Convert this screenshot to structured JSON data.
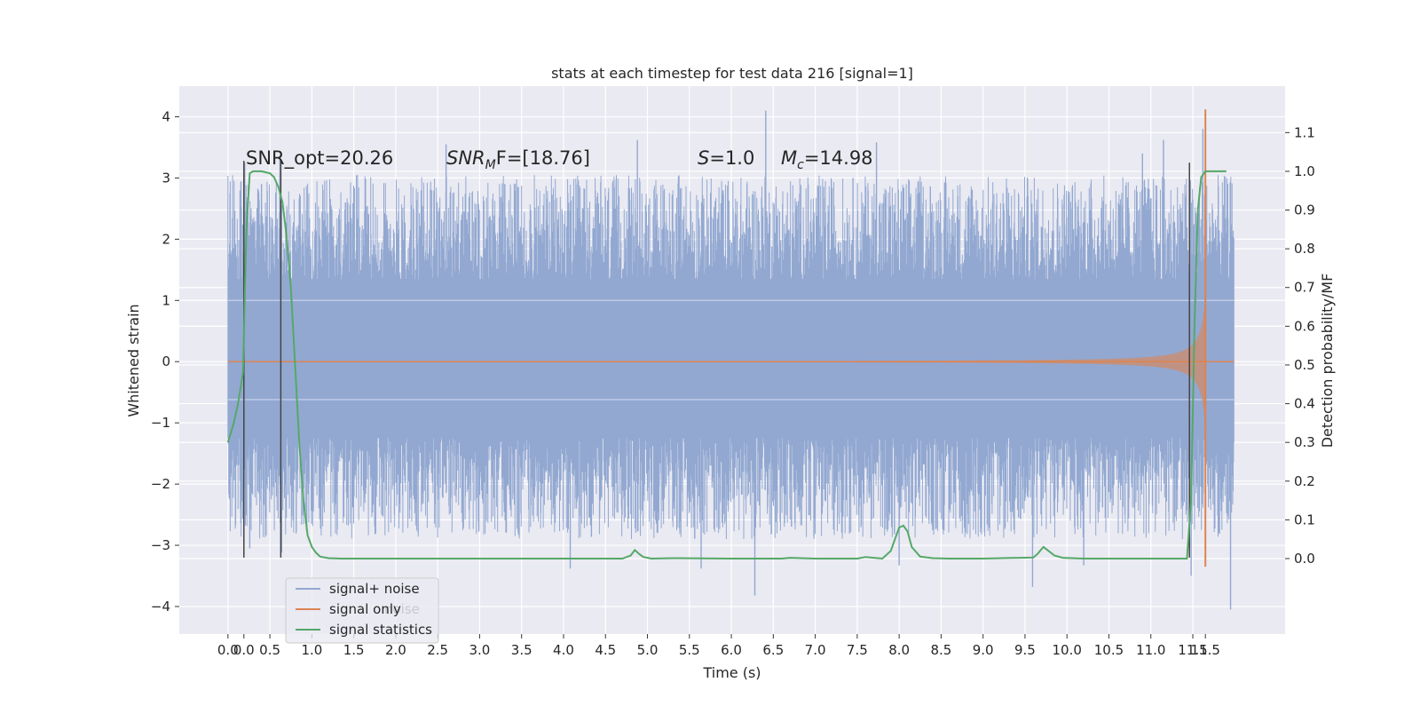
{
  "chart_data": {
    "type": "line",
    "title": "stats at each timestep for test data 216 [signal=1]",
    "xlabel": "Time (s)",
    "ylabel": "Whitened strain",
    "ylabel_right": "Detection probability/MF",
    "xlim": [
      -0.58,
      12.6
    ],
    "ylim": [
      -4.45,
      4.5
    ],
    "ylim_right": [
      -0.195,
      1.22
    ],
    "grid": true,
    "x_ticks": [
      "0.0",
      "0.5",
      "1.0",
      "1.5",
      "2.0",
      "2.5",
      "3.0",
      "3.5",
      "4.0",
      "4.5",
      "5.0",
      "5.5",
      "6.0",
      "6.5",
      "7.0",
      "7.5",
      "8.0",
      "8.5",
      "9.0",
      "9.5",
      "10.0",
      "10.5",
      "11.0",
      "11.5"
    ],
    "x_ticks_extra": [
      {
        "x": 0.19,
        "label": "0.0"
      },
      {
        "x": 11.65,
        "label": "11.5"
      }
    ],
    "y_ticks": [
      4,
      3,
      2,
      1,
      0,
      -1,
      -2,
      -3,
      -4
    ],
    "y_tick_labels": [
      "4",
      "3",
      "2",
      "1",
      "0",
      "−1",
      "−2",
      "−3",
      "−4"
    ],
    "y_ticks_right": [
      1.1,
      1.0,
      0.9,
      0.8,
      0.7,
      0.6,
      0.5,
      0.4,
      0.3,
      0.2,
      0.1,
      0.0
    ],
    "y_tick_labels_right": [
      "1.1",
      "1.0",
      "0.9",
      "0.8",
      "0.7",
      "0.6",
      "0.5",
      "0.4",
      "0.3",
      "0.2",
      "0.1",
      "0.0"
    ],
    "annotations": {
      "snr_opt": "SNR_opt=20.26",
      "snr_mf_main": "SNR",
      "snr_mf_sub": "M",
      "snr_mf_rest": "F=[18.76]",
      "s_main": "S",
      "s_rest": "=1.0",
      "mc_main": "M",
      "mc_sub": "c",
      "mc_rest": "=14.98"
    },
    "legend": {
      "placement": "lower-left",
      "entries": [
        "signal+ noise",
        "signal only",
        "signal statistics"
      ],
      "ghost_text": "noise"
    },
    "series": [
      {
        "name": "signal+ noise",
        "color": "#92a8d1",
        "envelope": {
          "core_upper": 1.35,
          "core_lower": -1.25,
          "spike_max": 4.1,
          "spike_min": -4.05,
          "x_start": 0.0,
          "x_end": 11.99
        },
        "spikes": [
          [
            0.2,
            3.25
          ],
          [
            0.26,
            -3.05
          ],
          [
            0.62,
            3.35
          ],
          [
            0.64,
            -3.12
          ],
          [
            2.6,
            3.55
          ],
          [
            4.08,
            -3.38
          ],
          [
            4.88,
            3.62
          ],
          [
            5.64,
            -3.38
          ],
          [
            6.41,
            4.1
          ],
          [
            6.28,
            -3.82
          ],
          [
            7.73,
            3.58
          ],
          [
            8.0,
            -3.33
          ],
          [
            9.59,
            -3.68
          ],
          [
            10.2,
            -3.33
          ],
          [
            11.15,
            3.62
          ],
          [
            11.62,
            3.8
          ],
          [
            11.48,
            -3.5
          ],
          [
            11.95,
            -4.05
          ],
          [
            0.4,
            2.9
          ],
          [
            1.4,
            2.6
          ],
          [
            3.3,
            2.9
          ],
          [
            5.9,
            2.8
          ],
          [
            8.7,
            2.7
          ],
          [
            10.9,
            3.4
          ]
        ]
      },
      {
        "name": "signal only",
        "color": "#dd8452",
        "chirp": {
          "start": 7.5,
          "peak": 11.65,
          "peak_high": 4.12,
          "peak_low": -3.35,
          "end": 11.99
        }
      },
      {
        "name": "signal statistics",
        "color": "#55a868",
        "axis": "right",
        "x": [
          0.0,
          0.07,
          0.12,
          0.18,
          0.22,
          0.26,
          0.3,
          0.4,
          0.5,
          0.55,
          0.6,
          0.65,
          0.7,
          0.75,
          0.8,
          0.85,
          0.9,
          0.95,
          1.0,
          1.05,
          1.1,
          1.2,
          1.35,
          2.0,
          3.0,
          4.0,
          4.7,
          4.8,
          4.85,
          4.9,
          4.95,
          5.05,
          5.3,
          6.0,
          6.6,
          6.7,
          7.0,
          7.5,
          7.6,
          7.7,
          7.8,
          7.9,
          8.0,
          8.05,
          8.1,
          8.15,
          8.25,
          8.4,
          8.6,
          9.0,
          9.6,
          9.65,
          9.72,
          9.78,
          9.85,
          9.95,
          10.2,
          10.5,
          11.0,
          11.43,
          11.48,
          11.52,
          11.56,
          11.6,
          11.65,
          11.75,
          11.9
        ],
        "values": [
          0.3,
          0.35,
          0.4,
          0.48,
          0.85,
          0.995,
          1.0,
          1.0,
          0.995,
          0.985,
          0.96,
          0.92,
          0.83,
          0.7,
          0.5,
          0.3,
          0.15,
          0.06,
          0.03,
          0.015,
          0.005,
          0.001,
          0.0,
          0.0,
          0.0,
          0.0,
          0.0,
          0.008,
          0.022,
          0.012,
          0.004,
          0.0,
          0.001,
          0.0,
          0.0,
          0.002,
          0.0,
          0.0,
          0.004,
          0.002,
          0.0,
          0.02,
          0.08,
          0.085,
          0.07,
          0.03,
          0.005,
          0.001,
          0.0,
          0.0,
          0.003,
          0.012,
          0.03,
          0.02,
          0.008,
          0.002,
          0.0,
          0.0,
          0.0,
          0.0,
          0.15,
          0.6,
          0.9,
          0.985,
          1.0,
          1.0,
          1.0
        ]
      }
    ],
    "vertical_lines": [
      {
        "x": 0.19,
        "y_from": -3.2,
        "y_to": 3.28,
        "color": "#444444"
      },
      {
        "x": 0.63,
        "y_from": -3.2,
        "y_to": 3.28,
        "color": "#444444"
      },
      {
        "x": 11.46,
        "y_from": -3.2,
        "y_to": 3.25,
        "color": "#444444"
      }
    ],
    "colors": {
      "background": "#eaeaf2",
      "grid": "#ffffff",
      "noise": "#92a8d1",
      "signal": "#dd8452",
      "stat": "#55a868"
    }
  }
}
